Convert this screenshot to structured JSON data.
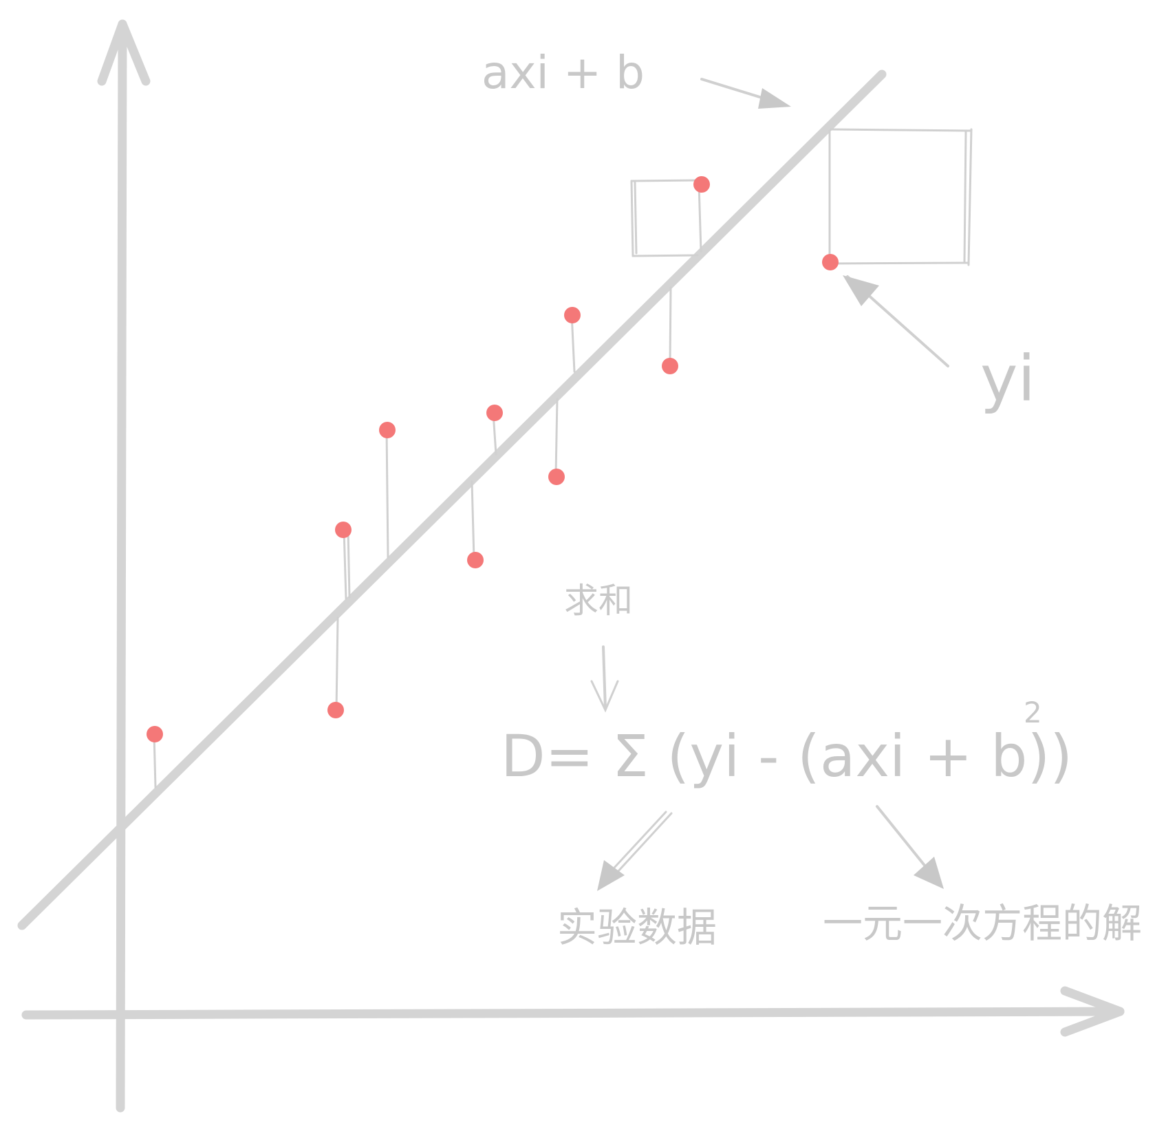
{
  "labels": {
    "line_label": "axi + b",
    "point_label": "yi",
    "sum_label": "求和",
    "formula": "D= Σ (yi - (axi + b))",
    "formula_exponent": "2",
    "exp_data_label": "实验数据",
    "solution_label": "一元一次方程的解"
  },
  "colors": {
    "ink": "#c8c8c8",
    "point": "#f47878",
    "background": "#ffffff"
  }
}
